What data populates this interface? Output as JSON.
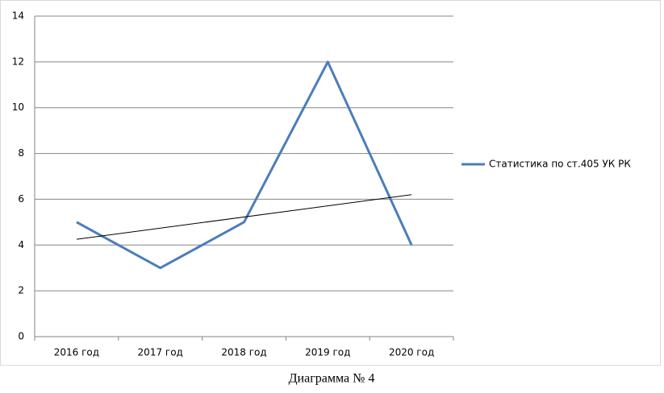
{
  "chart_data": {
    "type": "line",
    "categories": [
      "2016 год",
      "2017 год",
      "2018 год",
      "2019 год",
      "2020 год"
    ],
    "series": [
      {
        "name": "Статистика по ст.405 УК РК",
        "color": "#4a7ebb",
        "values": [
          5,
          3,
          5,
          12,
          4
        ]
      }
    ],
    "trendline": {
      "color": "#000000",
      "start": 4.25,
      "end": 6.2
    },
    "ylim": [
      0,
      14
    ],
    "yticks": [
      0,
      2,
      4,
      6,
      8,
      10,
      12,
      14
    ],
    "grid": true,
    "legend": "right"
  },
  "caption": "Диаграмма № 4"
}
